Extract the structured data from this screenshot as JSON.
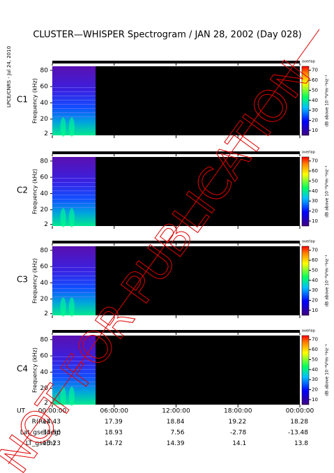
{
  "chart_data": {
    "type": "spectrogram",
    "title": "CLUSTER—WHISPER Spectrogram / JAN 28, 2002 (Day 028)",
    "side_note": "LPCE/CNRS - Jul 24, 2010",
    "watermark": "NOT FOR PUBLICATION",
    "y_label": "Frequency (kHz)",
    "ylim": [
      0,
      85
    ],
    "yticks": [
      2,
      20,
      40,
      60,
      80
    ],
    "xlim": [
      0,
      24
    ],
    "xticks": [
      {
        "value": 0,
        "label": "00:00:00"
      },
      {
        "value": 6,
        "label": "06:00:00"
      },
      {
        "value": 12,
        "label": "12:00:00"
      },
      {
        "value": 18,
        "label": "18:00:00"
      },
      {
        "value": 24,
        "label": "00:00:00"
      }
    ],
    "coverage": [
      0,
      4.2
    ],
    "panels": [
      {
        "label": "C1",
        "color": "#000000"
      },
      {
        "label": "C2",
        "color": "#000000"
      },
      {
        "label": "C3",
        "color": "#00b000"
      },
      {
        "label": "C4",
        "color": "#000000"
      }
    ],
    "colorbar": {
      "label": "dB above 10⁻⁸V²m⁻²Hz⁻¹",
      "note": "overlap",
      "lim": [
        5,
        74
      ],
      "ticks": [
        10,
        20,
        30,
        40,
        50,
        60,
        70
      ]
    },
    "ephemeris": {
      "time_label": "UT",
      "rows": [
        {
          "label": "R(Re)",
          "values": [
            14.43,
            17.39,
            18.84,
            19.22,
            18.28
          ]
        },
        {
          "label": "Lat_gse(deg)",
          "values": [
            33.56,
            18.93,
            7.56,
            -2.78,
            -13.48
          ]
        },
        {
          "label": "LT_gse(h)",
          "values": [
            15.23,
            14.72,
            14.39,
            14.1,
            13.8
          ]
        }
      ]
    }
  }
}
